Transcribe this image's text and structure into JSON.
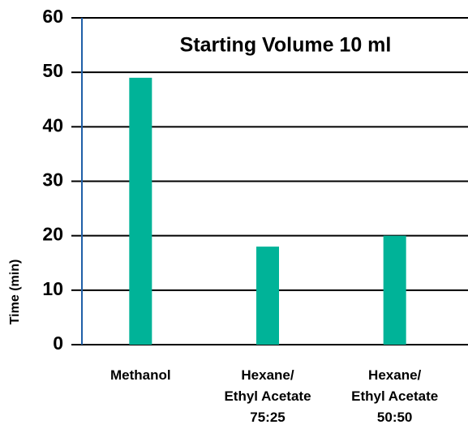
{
  "chart_data": {
    "type": "bar",
    "title": "Starting Volume 10 ml",
    "y_label": "Time (min)",
    "categories": [
      "Methanol",
      "Hexane/\nEthyl Acetate\n75:25",
      "Hexane/\nEthyl Acetate\n50:50"
    ],
    "values": [
      49,
      18,
      20
    ],
    "color": "#00b398",
    "ylim": [
      0,
      60
    ],
    "yticks": [
      0,
      10,
      20,
      30,
      40,
      50,
      60
    ],
    "grid": true
  }
}
